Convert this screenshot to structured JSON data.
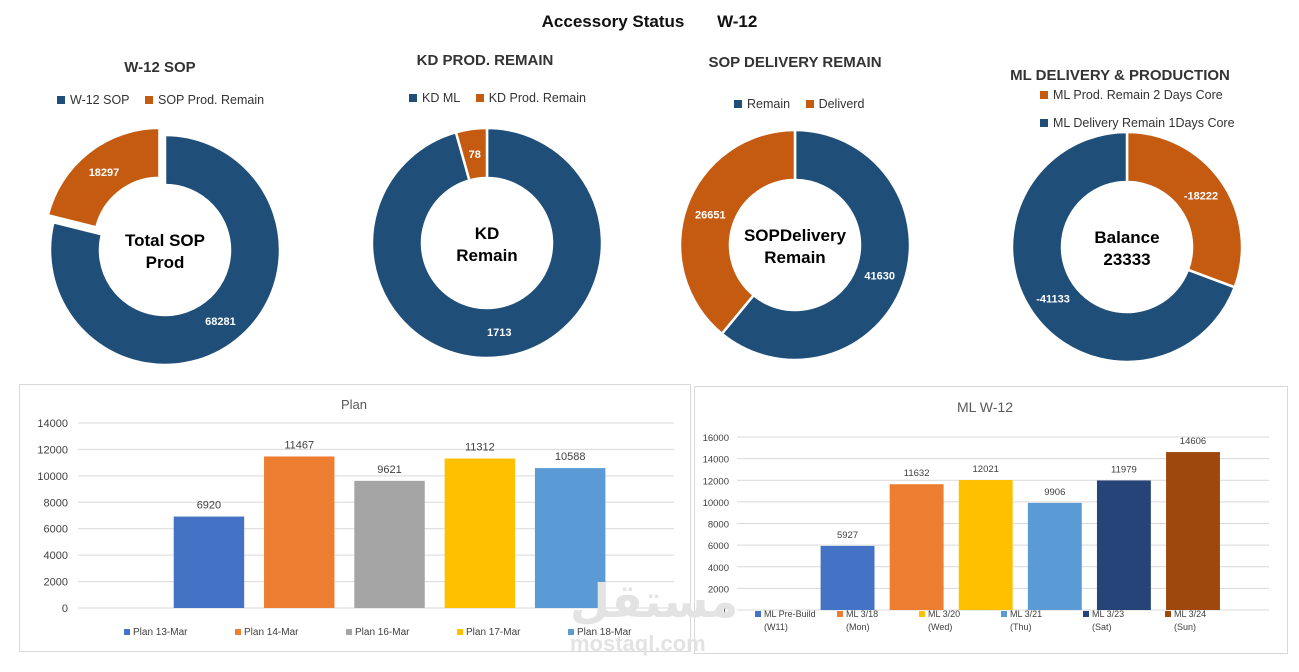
{
  "page": {
    "title": "Accessory Status",
    "week": "W-12"
  },
  "colors": {
    "navy": "#1f4e79",
    "orange": "#c55a11"
  },
  "donuts": [
    {
      "title": "W-12 SOP",
      "legend": [
        "W-12 SOP",
        "SOP Prod. Remain"
      ],
      "center_line1": "Total SOP",
      "center_line2": "Prod",
      "slices": [
        {
          "label": "W-12 SOP",
          "value": 68281,
          "display": "68281",
          "color": "#1f4e79"
        },
        {
          "label": "SOP Prod. Remain",
          "value": 18297,
          "display": "18297",
          "color": "#c55a11",
          "exploded": true
        }
      ]
    },
    {
      "title": "KD PROD. REMAIN",
      "legend": [
        "KD ML",
        "KD Prod. Remain"
      ],
      "center_line1": "KD",
      "center_line2": "Remain",
      "slices": [
        {
          "label": "KD ML",
          "value": 1713,
          "display": "1713",
          "color": "#1f4e79"
        },
        {
          "label": "KD Prod. Remain",
          "value": 78,
          "display": "78",
          "color": "#c55a11"
        }
      ]
    },
    {
      "title": "SOP DELIVERY REMAIN",
      "legend": [
        "Remain",
        "Deliverd"
      ],
      "center_line1": "SOPDelivery",
      "center_line2": "Remain",
      "slices": [
        {
          "label": "Remain",
          "value": 41630,
          "display": "41630",
          "color": "#1f4e79"
        },
        {
          "label": "Deliverd",
          "value": 26651,
          "display": "26651",
          "color": "#c55a11"
        }
      ]
    },
    {
      "title": "ML DELIVERY & PRODUCTION",
      "legend": [
        "ML Prod. Remain 2 Days Core",
        "ML Delivery Remain  1Days Core"
      ],
      "center_line1": "Balance",
      "center_line2": "23333",
      "slices": [
        {
          "label": "ML Prod. Remain 2 Days Core",
          "value": 18222,
          "display": "-18222",
          "color": "#c55a11"
        },
        {
          "label": "ML Delivery Remain  1Days Core",
          "value": 41133,
          "display": "-41133",
          "color": "#1f4e79"
        }
      ]
    }
  ],
  "chart_data": [
    {
      "type": "bar",
      "title": "Plan",
      "categories": [
        "Plan 13-Mar",
        "Plan 14-Mar",
        "Plan 16-Mar",
        "Plan 17-Mar",
        "Plan 18-Mar"
      ],
      "values": [
        6920,
        11467,
        9621,
        11312,
        10588
      ],
      "colors": [
        "#4472c4",
        "#ed7d31",
        "#a5a5a5",
        "#ffc000",
        "#5b9bd5"
      ],
      "ylim": [
        0,
        14000
      ],
      "yticks": [
        0,
        2000,
        4000,
        6000,
        8000,
        10000,
        12000,
        14000
      ],
      "legend_position": "bottom",
      "grid": true
    },
    {
      "type": "bar",
      "title": "ML W-12",
      "categories": [
        {
          "line1": "ML Pre-Build",
          "line2": "(W11)"
        },
        {
          "line1": "ML 3/18",
          "line2": "(Mon)"
        },
        {
          "line1": "ML 3/20",
          "line2": "(Wed)"
        },
        {
          "line1": "ML 3/21",
          "line2": "(Thu)"
        },
        {
          "line1": "ML 3/23",
          "line2": "(Sat)"
        },
        {
          "line1": "ML 3/24",
          "line2": "(Sun)"
        }
      ],
      "values": [
        5927,
        11632,
        12021,
        9906,
        11979,
        14606
      ],
      "colors": [
        "#4472c4",
        "#ed7d31",
        "#ffc000",
        "#5b9bd5",
        "#264478",
        "#9e480e"
      ],
      "ylim": [
        0,
        16000
      ],
      "yticks": [
        0,
        2000,
        4000,
        6000,
        8000,
        10000,
        12000,
        14000,
        16000
      ],
      "legend_position": "bottom",
      "grid": true
    }
  ],
  "watermark": {
    "arabic": "مستقل",
    "latin": "mostaql.com"
  }
}
